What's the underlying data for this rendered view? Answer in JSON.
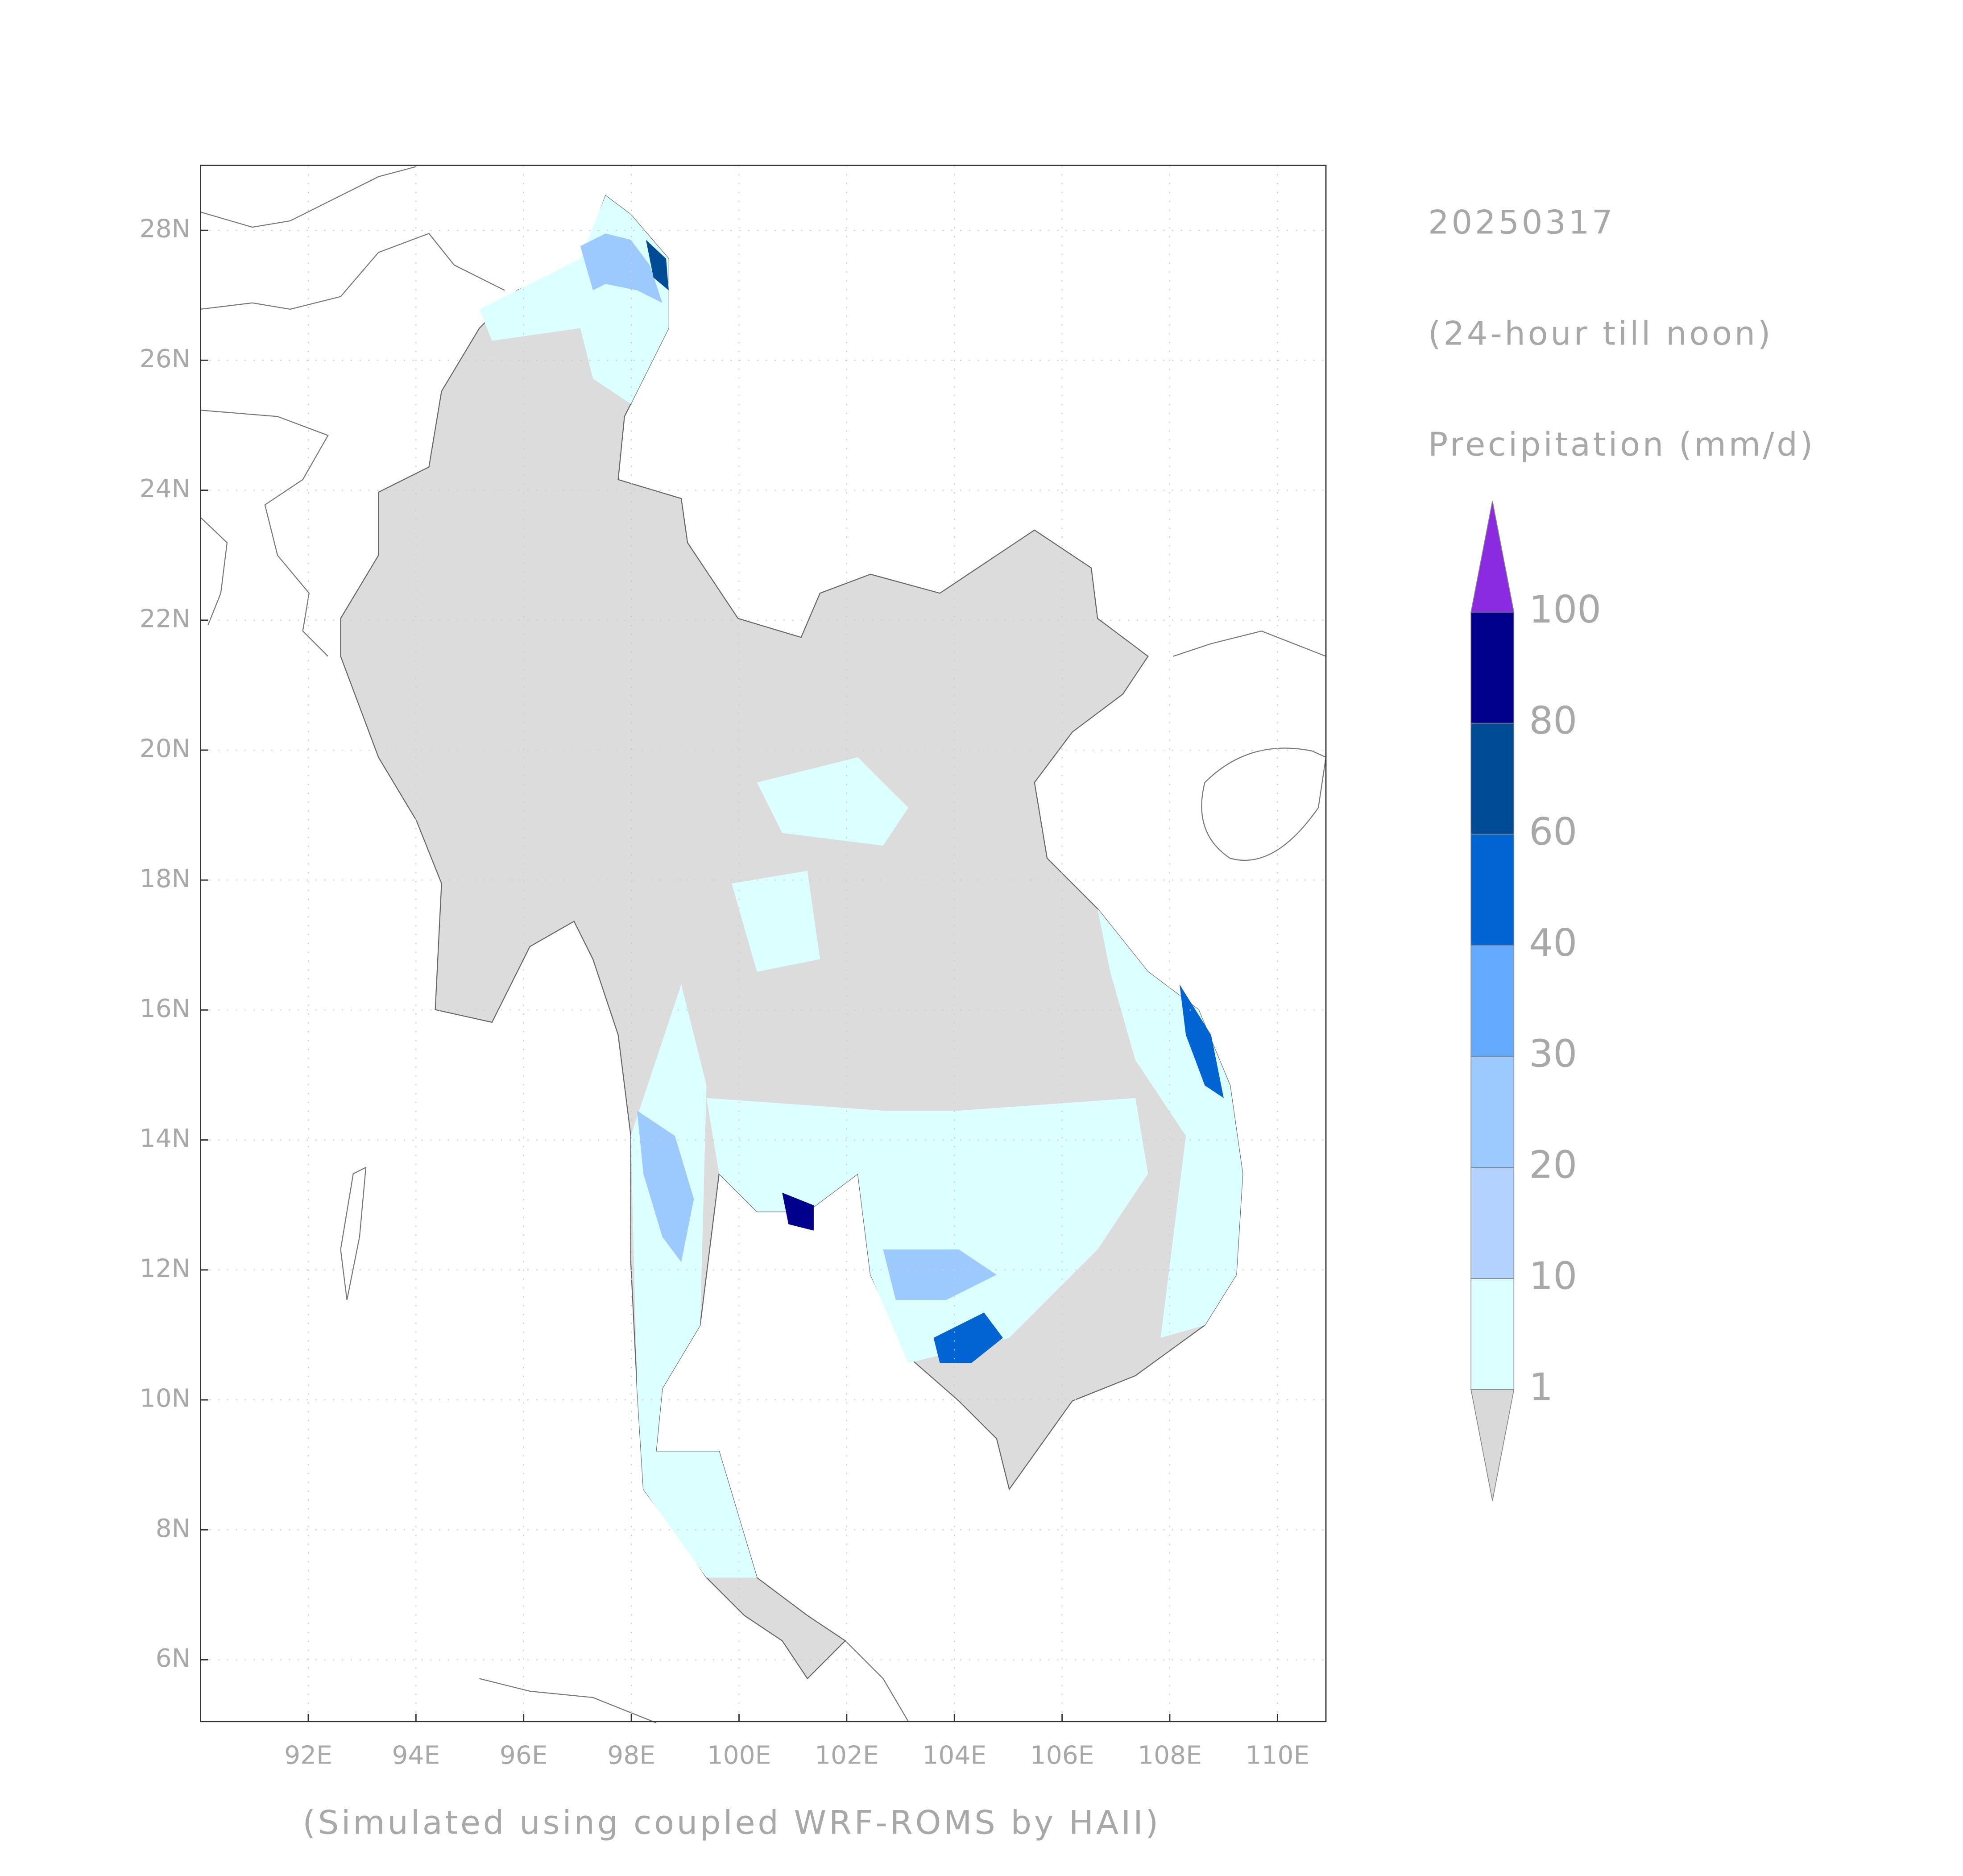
{
  "map": {
    "date": "20250317",
    "period": "(24-hour till noon)",
    "variable": "Precipitation (mm/d)",
    "footer": "(Simulated using coupled WRF-ROMS by HAII)",
    "xlim": [
      90,
      110.9
    ],
    "ylim": [
      5.05,
      29
    ],
    "xticks": [
      {
        "value": 92,
        "label": "92E"
      },
      {
        "value": 94,
        "label": "94E"
      },
      {
        "value": 96,
        "label": "96E"
      },
      {
        "value": 98,
        "label": "98E"
      },
      {
        "value": 100,
        "label": "100E"
      },
      {
        "value": 102,
        "label": "102E"
      },
      {
        "value": 104,
        "label": "104E"
      },
      {
        "value": 106,
        "label": "106E"
      },
      {
        "value": 108,
        "label": "108E"
      },
      {
        "value": 110,
        "label": "110E"
      }
    ],
    "yticks": [
      {
        "value": 6,
        "label": "6N"
      },
      {
        "value": 8,
        "label": "8N"
      },
      {
        "value": 10,
        "label": "10N"
      },
      {
        "value": 12,
        "label": "12N"
      },
      {
        "value": 14,
        "label": "14N"
      },
      {
        "value": 16,
        "label": "16N"
      },
      {
        "value": 18,
        "label": "18N"
      },
      {
        "value": 20,
        "label": "20N"
      },
      {
        "value": 22,
        "label": "22N"
      },
      {
        "value": 24,
        "label": "24N"
      },
      {
        "value": 26,
        "label": "26N"
      },
      {
        "value": 28,
        "label": "28N"
      }
    ],
    "grid": true,
    "colorbar": {
      "levels": [
        1,
        10,
        20,
        30,
        40,
        60,
        80,
        100
      ],
      "colors": [
        "#d9d9d9",
        "#dcffff",
        "#b4d2ff",
        "#9ccaff",
        "#64aaff",
        "#0064d2",
        "#004b96",
        "#00008c",
        "#8a2be2"
      ]
    }
  }
}
